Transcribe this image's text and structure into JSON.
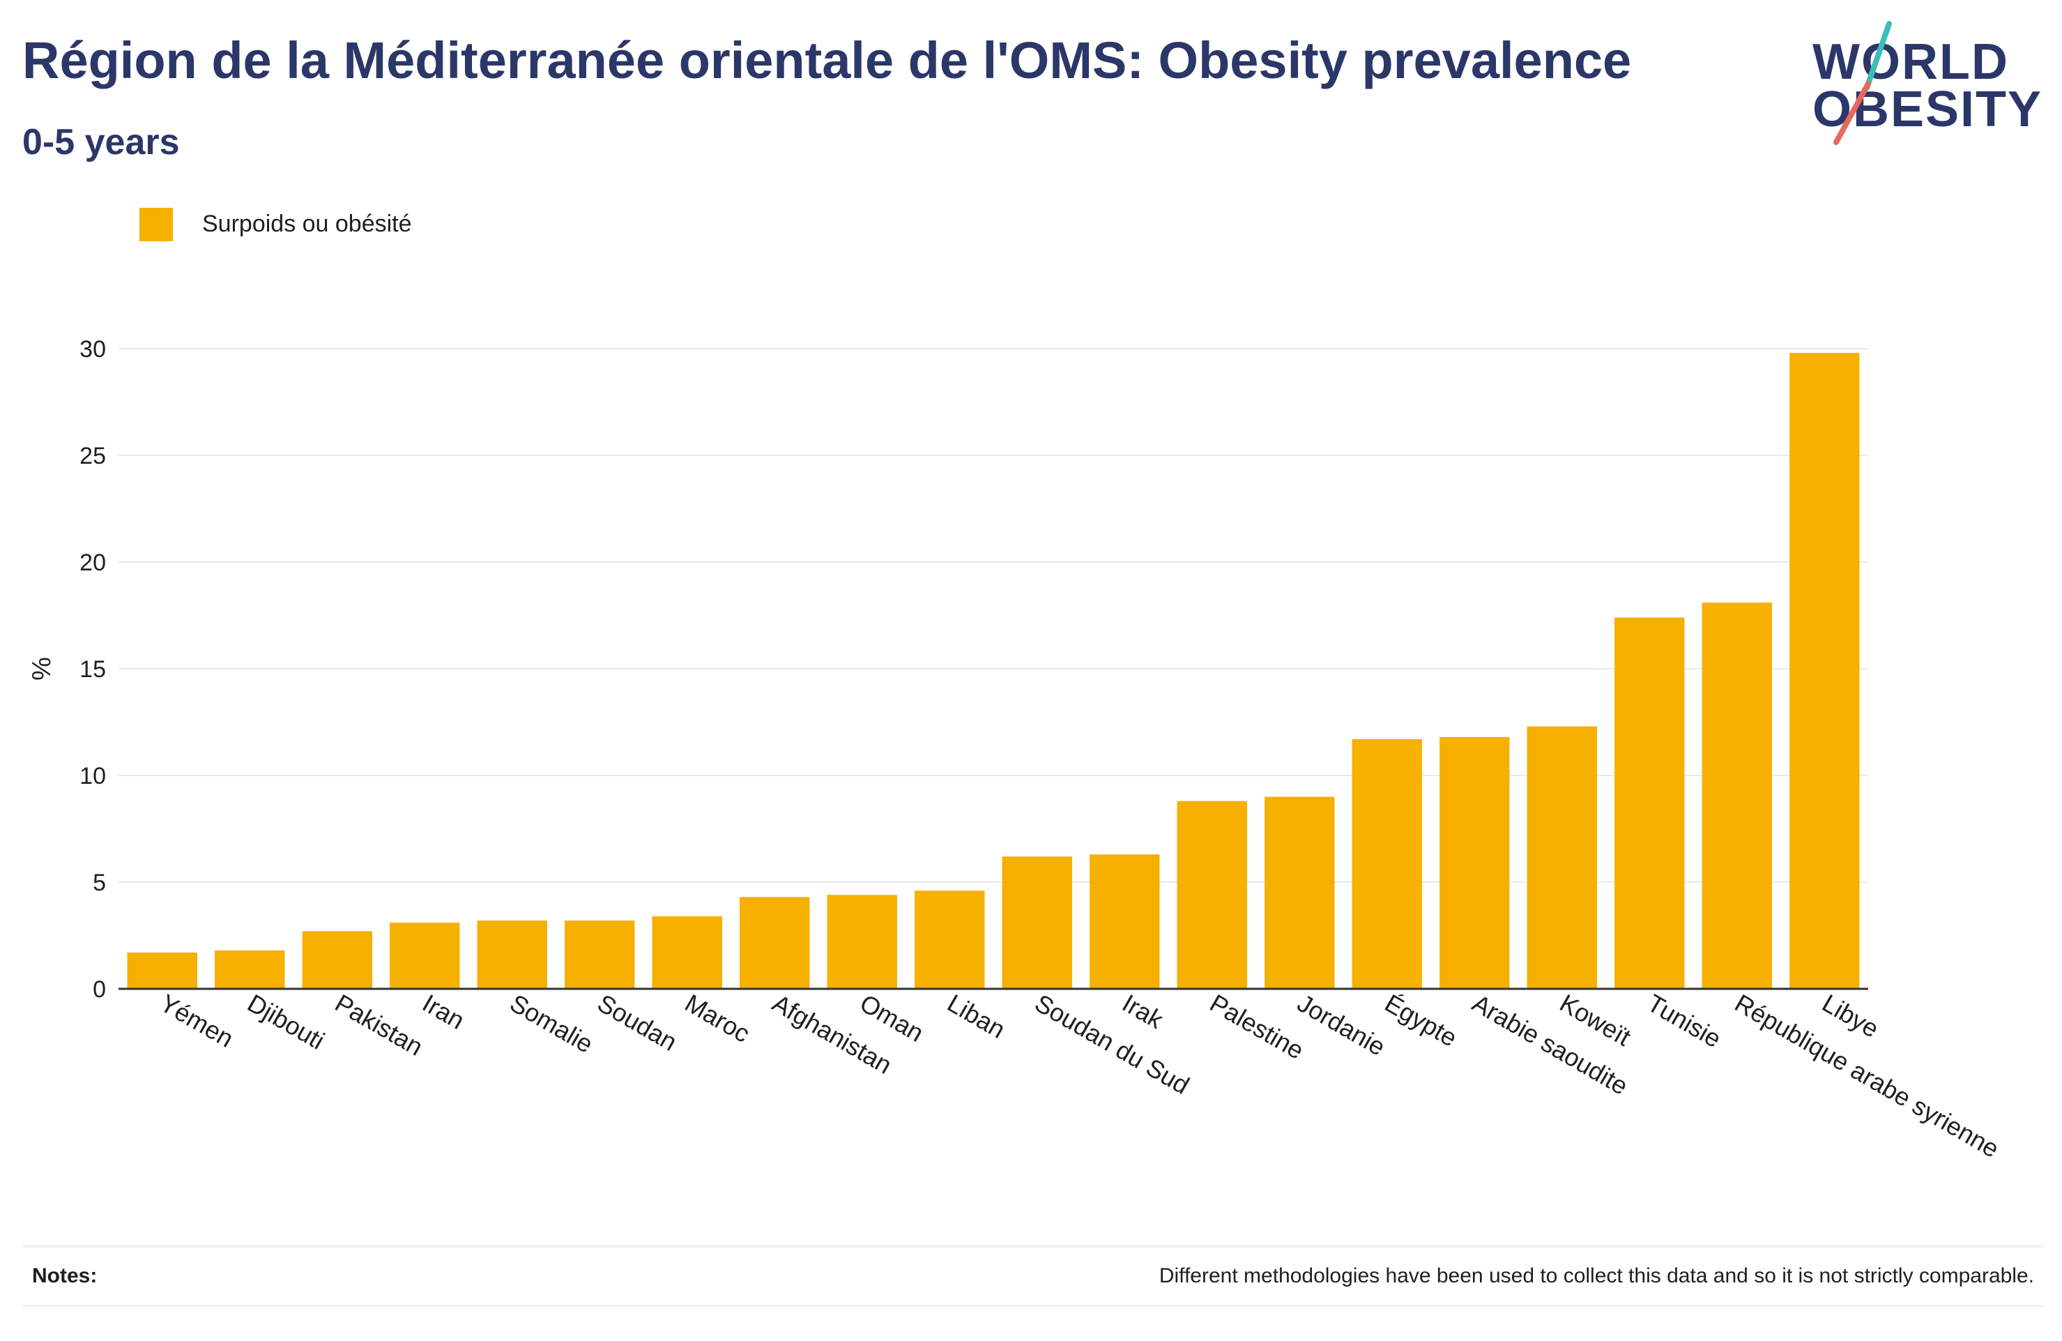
{
  "header": {
    "title": "Région de la Méditerranée orientale de l'OMS: Obesity prevalence",
    "subtitle": "0-5 years"
  },
  "logo": {
    "line1": "WORLD",
    "line2": "OBESITY",
    "slash_color_top": "#3dbdb7",
    "slash_color_bottom": "#e8685a"
  },
  "legend": {
    "items": [
      {
        "label": "Surpoids ou obésité",
        "color": "#f5b000"
      }
    ]
  },
  "notes": {
    "label": "Notes:",
    "text": "Different methodologies have been used to collect this data and so it is not strictly comparable."
  },
  "chart_data": {
    "type": "bar",
    "title": "Région de la Méditerranée orientale de l'OMS: Obesity prevalence",
    "subtitle": "0-5 years",
    "xlabel": "",
    "ylabel": "%",
    "ylim": [
      0,
      30
    ],
    "yticks": [
      0,
      5,
      10,
      15,
      20,
      25,
      30
    ],
    "grid": true,
    "legend_position": "top-left",
    "bar_color": "#f5b000",
    "categories": [
      "Yémen",
      "Djibouti",
      "Pakistan",
      "Iran",
      "Somalie",
      "Soudan",
      "Maroc",
      "Afghanistan",
      "Oman",
      "Liban",
      "Soudan du Sud",
      "Irak",
      "Palestine",
      "Jordanie",
      "Égypte",
      "Arabie saoudite",
      "Koweït",
      "Tunisie",
      "République arabe syrienne",
      "Libye"
    ],
    "series": [
      {
        "name": "Surpoids ou obésité",
        "values": [
          1.7,
          1.8,
          2.7,
          3.1,
          3.2,
          3.2,
          3.4,
          4.3,
          4.4,
          4.6,
          6.2,
          6.3,
          8.8,
          9.0,
          11.7,
          11.8,
          12.3,
          17.4,
          18.1,
          29.8
        ]
      }
    ]
  }
}
